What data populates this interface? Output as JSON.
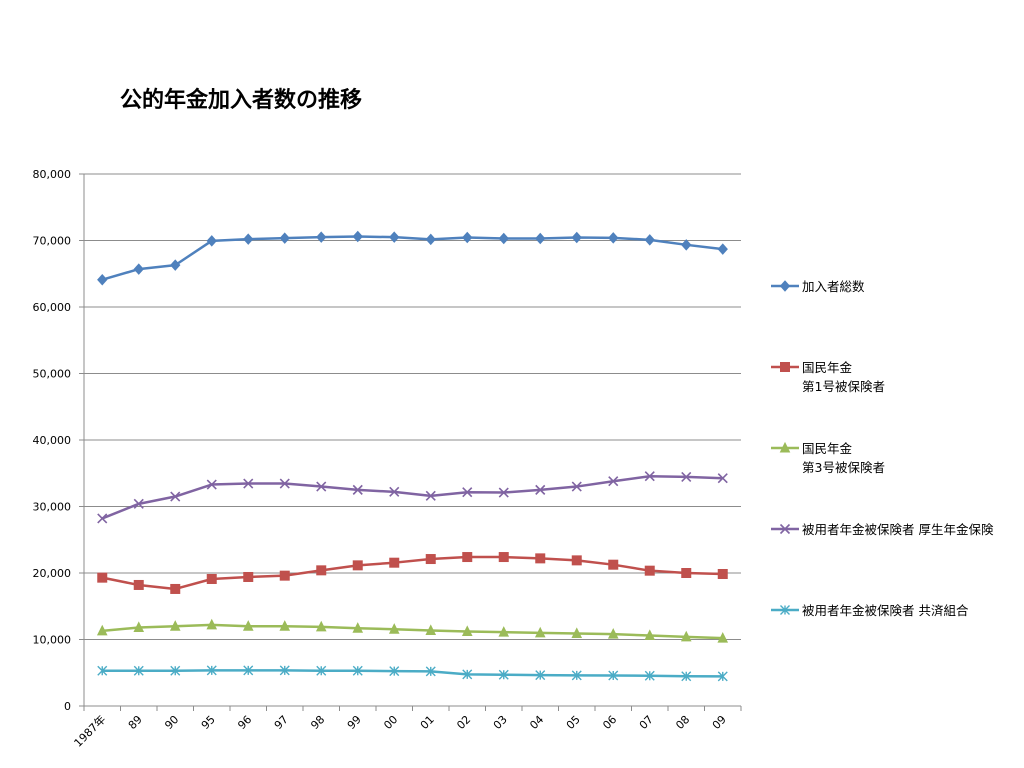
{
  "chart_data": {
    "type": "line",
    "title": "公的年金加入者数の推移",
    "xlabel": "",
    "ylabel": "",
    "categories": [
      "1987年",
      "89",
      "90",
      "95",
      "96",
      "97",
      "98",
      "99",
      "00",
      "01",
      "02",
      "03",
      "04",
      "05",
      "06",
      "07",
      "08",
      "09"
    ],
    "ylim": [
      0,
      80000
    ],
    "yticks": [
      0,
      10000,
      20000,
      30000,
      40000,
      50000,
      60000,
      70000,
      80000
    ],
    "ytick_labels": [
      "0",
      "10,000",
      "20,000",
      "30,000",
      "40,000",
      "50,000",
      "60,000",
      "70,000",
      "80,000"
    ],
    "grid": true,
    "legend_position": "right",
    "series": [
      {
        "name_lines": [
          "加入者総数"
        ],
        "color": "#4F81BD",
        "marker": "diamond",
        "values": [
          64100,
          65700,
          66300,
          69950,
          70200,
          70350,
          70500,
          70600,
          70500,
          70170,
          70450,
          70300,
          70300,
          70450,
          70400,
          70100,
          69350,
          68700
        ]
      },
      {
        "name_lines": [
          "国民年金",
          "第1号被保険者"
        ],
        "color": "#C0504D",
        "marker": "square",
        "values": [
          19300,
          18200,
          17600,
          19100,
          19400,
          19600,
          20400,
          21150,
          21550,
          22100,
          22400,
          22400,
          22200,
          21900,
          21250,
          20350,
          20000,
          19850
        ]
      },
      {
        "name_lines": [
          "国民年金",
          "第3号被保険者"
        ],
        "color": "#9BBB59",
        "marker": "triangle",
        "values": [
          11300,
          11800,
          12000,
          12200,
          12000,
          12000,
          11900,
          11700,
          11550,
          11350,
          11200,
          11100,
          10990,
          10900,
          10800,
          10600,
          10400,
          10200
        ]
      },
      {
        "name_lines": [
          "被用者年金被保険者 厚生年金保険"
        ],
        "color": "#8064A2",
        "marker": "x",
        "values": [
          28200,
          30400,
          31500,
          33300,
          33450,
          33450,
          33000,
          32500,
          32200,
          31600,
          32150,
          32100,
          32500,
          33000,
          33800,
          34550,
          34450,
          34250
        ]
      },
      {
        "name_lines": [
          "被用者年金被保険者 共済組合"
        ],
        "color": "#4BACC6",
        "marker": "star",
        "values": [
          5300,
          5300,
          5300,
          5350,
          5350,
          5350,
          5300,
          5300,
          5250,
          5200,
          4750,
          4700,
          4650,
          4600,
          4580,
          4550,
          4480,
          4450
        ]
      }
    ]
  }
}
